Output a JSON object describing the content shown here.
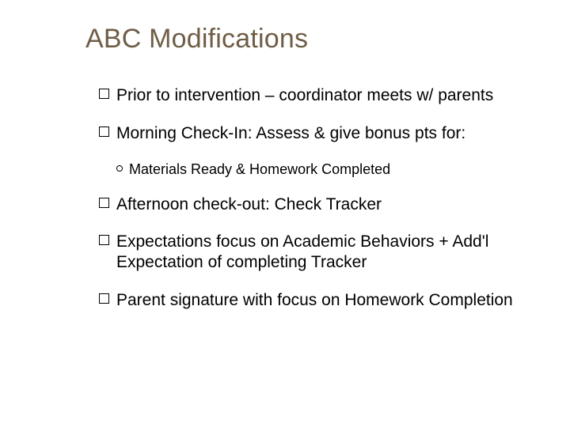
{
  "slide": {
    "title": "ABC Modifications",
    "title_color": "#6f5d46",
    "title_fontsize": 34,
    "background_color": "#ffffff",
    "body_fontsize": 21,
    "sub_fontsize": 18,
    "bullet_style": "hollow-square",
    "sub_bullet_style": "hollow-circle",
    "items": [
      {
        "text": "Prior to intervention – coordinator meets w/ parents"
      },
      {
        "text": "Morning Check-In:  Assess & give bonus pts for:",
        "sub": [
          {
            "text": "Materials Ready & Homework Completed"
          }
        ]
      },
      {
        "text": "Afternoon check-out: Check Tracker"
      },
      {
        "text": "Expectations focus on Academic Behaviors + Add'l Expectation of completing Tracker"
      },
      {
        "text": "Parent signature with focus on Homework Completion"
      }
    ]
  }
}
